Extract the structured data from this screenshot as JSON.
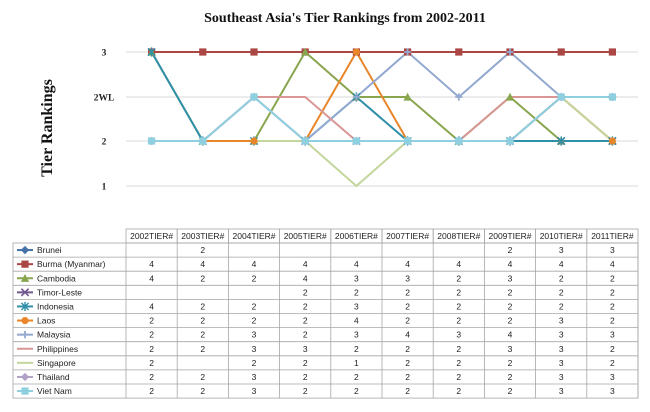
{
  "chart_data": {
    "type": "line",
    "title": "Southeast Asia's Tier Rankings from 2002-2011",
    "ylabel": "Tier Rankings",
    "xlabel": "",
    "categories": [
      "2002TIER#",
      "2003TIER#",
      "2004TIER#",
      "2005TIER#",
      "2006TIER#",
      "2007TIER#",
      "2008TIER#",
      "2009TIER#",
      "2010TIER#",
      "2011TIER#"
    ],
    "y_ticks": [
      {
        "value": 4,
        "label": "3"
      },
      {
        "value": 3,
        "label": "2WL"
      },
      {
        "value": 2,
        "label": "2"
      },
      {
        "value": 1,
        "label": "1"
      }
    ],
    "ylim": [
      0.5,
      4.5
    ],
    "grid": true,
    "legend": "table-below",
    "series": [
      {
        "name": "Brunei",
        "color": "#4572a7",
        "marker": "diamond",
        "values": [
          null,
          2,
          null,
          null,
          null,
          null,
          null,
          2,
          3,
          3
        ]
      },
      {
        "name": "Burma (Myanmar)",
        "color": "#aa4643",
        "marker": "square",
        "values": [
          4,
          4,
          4,
          4,
          4,
          4,
          4,
          4,
          4,
          4
        ]
      },
      {
        "name": "Cambodia",
        "color": "#89a54e",
        "marker": "triangle",
        "values": [
          4,
          2,
          2,
          4,
          3,
          3,
          2,
          3,
          2,
          2
        ]
      },
      {
        "name": "Timor-Leste",
        "color": "#71588f",
        "marker": "x",
        "values": [
          null,
          null,
          null,
          2,
          2,
          2,
          2,
          2,
          2,
          2
        ]
      },
      {
        "name": "Indonesia",
        "color": "#2f8fa8",
        "marker": "star",
        "values": [
          4,
          2,
          2,
          2,
          3,
          2,
          2,
          2,
          2,
          2
        ]
      },
      {
        "name": "Laos",
        "color": "#e8862a",
        "marker": "circle",
        "values": [
          2,
          2,
          2,
          2,
          4,
          2,
          2,
          2,
          3,
          2
        ]
      },
      {
        "name": "Malaysia",
        "color": "#93a9d0",
        "marker": "plus",
        "values": [
          2,
          2,
          3,
          2,
          3,
          4,
          3,
          4,
          3,
          3
        ]
      },
      {
        "name": "Philippines",
        "color": "#d99694",
        "marker": "none",
        "values": [
          2,
          2,
          3,
          3,
          2,
          2,
          2,
          3,
          3,
          2
        ]
      },
      {
        "name": "Singapore",
        "color": "#c3d69b",
        "marker": "none",
        "values": [
          2,
          null,
          2,
          2,
          1,
          2,
          2,
          2,
          3,
          2
        ]
      },
      {
        "name": "Thailand",
        "color": "#b3a2c7",
        "marker": "diamond",
        "values": [
          2,
          2,
          3,
          2,
          2,
          2,
          2,
          2,
          3,
          3
        ]
      },
      {
        "name": "Viet Nam",
        "color": "#8fd0e0",
        "marker": "square",
        "values": [
          2,
          2,
          3,
          2,
          2,
          2,
          2,
          2,
          3,
          3
        ]
      }
    ]
  }
}
